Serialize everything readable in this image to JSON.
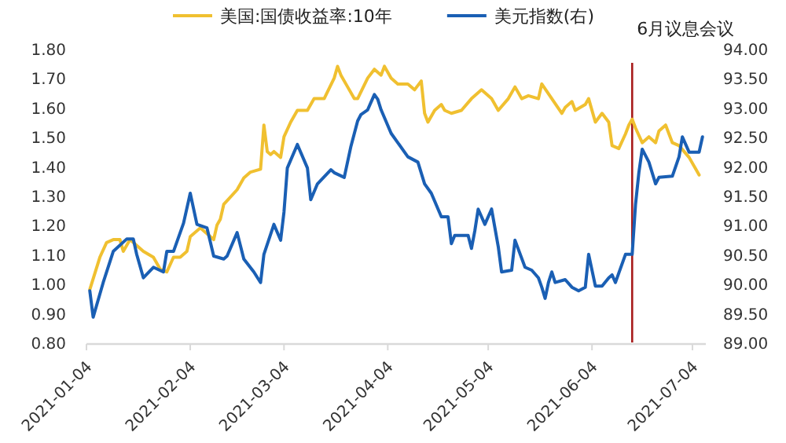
{
  "chart_data": {
    "type": "line",
    "legend": "top",
    "line_style": "solid",
    "marker": "none",
    "xlim": [
      "2021-01-04",
      "2021-07-08"
    ],
    "xticks": [
      "2021-01-04",
      "2021-02-04",
      "2021-03-04",
      "2021-04-04",
      "2021-05-04",
      "2021-06-04",
      "2021-07-04"
    ],
    "ylim": [
      0.8,
      1.8
    ],
    "yticks": [
      {
        "value": 0.8,
        "label": "0.80"
      },
      {
        "value": 0.9,
        "label": "0.90"
      },
      {
        "value": 1.0,
        "label": "1.00"
      },
      {
        "value": 1.1,
        "label": "1.10"
      },
      {
        "value": 1.2,
        "label": "1.20"
      },
      {
        "value": 1.3,
        "label": "1.30"
      },
      {
        "value": 1.4,
        "label": "1.40"
      },
      {
        "value": 1.5,
        "label": "1.50"
      },
      {
        "value": 1.6,
        "label": "1.60"
      },
      {
        "value": 1.7,
        "label": "1.70"
      },
      {
        "value": 1.8,
        "label": "1.80"
      }
    ],
    "y2lim": [
      89,
      94
    ],
    "y2ticks": [
      {
        "value": 89,
        "label": "89.00"
      },
      {
        "value": 89.5,
        "label": "89.50"
      },
      {
        "value": 90,
        "label": "90.00"
      },
      {
        "value": 90.5,
        "label": "90.50"
      },
      {
        "value": 91,
        "label": "91.00"
      },
      {
        "value": 91.5,
        "label": "91.50"
      },
      {
        "value": 92,
        "label": "92.00"
      },
      {
        "value": 92.5,
        "label": "92.50"
      },
      {
        "value": 93,
        "label": "93.00"
      },
      {
        "value": 93.5,
        "label": "93.50"
      },
      {
        "value": 94,
        "label": "94.00"
      }
    ],
    "ref_lines": [
      {
        "axis": "x",
        "value": "2021-06-16",
        "label": "6月议息会议",
        "color": "#a81c1c"
      }
    ],
    "series": [
      {
        "name": "美国:国债收益率:10年",
        "color": "#f0c030",
        "x": [
          "2021-01-05",
          "2021-01-08",
          "2021-01-10",
          "2021-01-12",
          "2021-01-14",
          "2021-01-15",
          "2021-01-17",
          "2021-01-21",
          "2021-01-24",
          "2021-01-26",
          "2021-01-28",
          "2021-01-30",
          "2021-02-01",
          "2021-02-03",
          "2021-02-04",
          "2021-02-07",
          "2021-02-09",
          "2021-02-11",
          "2021-02-12",
          "2021-02-13",
          "2021-02-14",
          "2021-02-18",
          "2021-02-20",
          "2021-02-22",
          "2021-02-25",
          "2021-02-26",
          "2021-02-27",
          "2021-02-28",
          "2021-03-01",
          "2021-03-03",
          "2021-03-04",
          "2021-03-06",
          "2021-03-08",
          "2021-03-11",
          "2021-03-13",
          "2021-03-14",
          "2021-03-16",
          "2021-03-19",
          "2021-03-20",
          "2021-03-21",
          "2021-03-23",
          "2021-03-25",
          "2021-03-26",
          "2021-03-29",
          "2021-03-31",
          "2021-04-02",
          "2021-04-03",
          "2021-04-05",
          "2021-04-07",
          "2021-04-10",
          "2021-04-12",
          "2021-04-14",
          "2021-04-15",
          "2021-04-16",
          "2021-04-18",
          "2021-04-20",
          "2021-04-21",
          "2021-04-23",
          "2021-04-26",
          "2021-04-29",
          "2021-05-02",
          "2021-05-05",
          "2021-05-07",
          "2021-05-10",
          "2021-05-12",
          "2021-05-14",
          "2021-05-16",
          "2021-05-19",
          "2021-05-20",
          "2021-05-23",
          "2021-05-26",
          "2021-05-27",
          "2021-05-29",
          "2021-05-30",
          "2021-06-02",
          "2021-06-03",
          "2021-06-05",
          "2021-06-07",
          "2021-06-09",
          "2021-06-10",
          "2021-06-12",
          "2021-06-14",
          "2021-06-15",
          "2021-06-16",
          "2021-06-17",
          "2021-06-19",
          "2021-06-21",
          "2021-06-23",
          "2021-06-24",
          "2021-06-26",
          "2021-06-28",
          "2021-06-30",
          "2021-07-03",
          "2021-07-05",
          "2021-07-06"
        ],
        "values": [
          0.98,
          1.09,
          1.14,
          1.15,
          1.15,
          1.11,
          1.15,
          1.11,
          1.09,
          1.05,
          1.04,
          1.09,
          1.09,
          1.11,
          1.16,
          1.19,
          1.17,
          1.15,
          1.2,
          1.22,
          1.27,
          1.32,
          1.36,
          1.38,
          1.39,
          1.54,
          1.45,
          1.44,
          1.45,
          1.43,
          1.5,
          1.55,
          1.59,
          1.59,
          1.63,
          1.63,
          1.63,
          1.7,
          1.74,
          1.71,
          1.67,
          1.63,
          1.63,
          1.7,
          1.73,
          1.71,
          1.74,
          1.7,
          1.68,
          1.68,
          1.66,
          1.69,
          1.58,
          1.55,
          1.59,
          1.61,
          1.59,
          1.58,
          1.59,
          1.63,
          1.66,
          1.63,
          1.59,
          1.63,
          1.67,
          1.63,
          1.64,
          1.63,
          1.68,
          1.63,
          1.58,
          1.6,
          1.62,
          1.59,
          1.61,
          1.63,
          1.55,
          1.58,
          1.55,
          1.47,
          1.46,
          1.51,
          1.54,
          1.56,
          1.53,
          1.48,
          1.5,
          1.48,
          1.52,
          1.54,
          1.48,
          1.47,
          1.43,
          1.39,
          1.37
        ]
      },
      {
        "name": "美元指数(右)",
        "color": "#1a5fb4",
        "axis": "y2",
        "x": [
          "2021-01-05",
          "2021-01-06",
          "2021-01-09",
          "2021-01-12",
          "2021-01-16",
          "2021-01-18",
          "2021-01-19",
          "2021-01-21",
          "2021-01-24",
          "2021-01-27",
          "2021-01-28",
          "2021-01-30",
          "2021-02-02",
          "2021-02-04",
          "2021-02-06",
          "2021-02-09",
          "2021-02-11",
          "2021-02-14",
          "2021-02-15",
          "2021-02-18",
          "2021-02-20",
          "2021-02-23",
          "2021-02-25",
          "2021-02-26",
          "2021-03-01",
          "2021-03-03",
          "2021-03-04",
          "2021-03-05",
          "2021-03-08",
          "2021-03-11",
          "2021-03-12",
          "2021-03-14",
          "2021-03-18",
          "2021-03-19",
          "2021-03-22",
          "2021-03-24",
          "2021-03-26",
          "2021-03-27",
          "2021-03-29",
          "2021-03-31",
          "2021-04-01",
          "2021-04-02",
          "2021-04-05",
          "2021-04-10",
          "2021-04-13",
          "2021-04-15",
          "2021-04-17",
          "2021-04-20",
          "2021-04-22",
          "2021-04-23",
          "2021-04-24",
          "2021-04-28",
          "2021-04-29",
          "2021-04-30",
          "2021-05-01",
          "2021-05-03",
          "2021-05-05",
          "2021-05-07",
          "2021-05-08",
          "2021-05-11",
          "2021-05-12",
          "2021-05-15",
          "2021-05-17",
          "2021-05-19",
          "2021-05-20",
          "2021-05-21",
          "2021-05-22",
          "2021-05-23",
          "2021-05-24",
          "2021-05-27",
          "2021-05-29",
          "2021-05-31",
          "2021-06-02",
          "2021-06-03",
          "2021-06-05",
          "2021-06-07",
          "2021-06-09",
          "2021-06-10",
          "2021-06-11",
          "2021-06-14",
          "2021-06-16",
          "2021-06-17",
          "2021-06-18",
          "2021-06-19",
          "2021-06-21",
          "2021-06-23",
          "2021-06-24",
          "2021-06-28",
          "2021-06-30",
          "2021-07-01",
          "2021-07-03",
          "2021-07-06",
          "2021-07-07"
        ],
        "values": [
          89.88,
          89.43,
          90.02,
          90.55,
          90.76,
          90.76,
          90.5,
          90.1,
          90.28,
          90.2,
          90.55,
          90.55,
          91.03,
          91.54,
          91.01,
          90.95,
          90.47,
          90.42,
          90.47,
          90.87,
          90.42,
          90.2,
          90.02,
          90.5,
          91.01,
          90.74,
          91.22,
          91.97,
          92.37,
          91.97,
          91.43,
          91.7,
          91.94,
          91.89,
          91.81,
          92.34,
          92.77,
          92.88,
          92.96,
          93.22,
          93.14,
          92.96,
          92.56,
          92.16,
          92.07,
          91.7,
          91.54,
          91.14,
          91.14,
          90.68,
          90.82,
          90.82,
          90.6,
          90.9,
          91.27,
          91.01,
          91.27,
          90.63,
          90.2,
          90.23,
          90.74,
          90.28,
          90.23,
          90.1,
          89.94,
          89.75,
          90.02,
          90.2,
          90.02,
          90.07,
          89.94,
          89.88,
          89.94,
          90.5,
          89.96,
          89.96,
          90.1,
          90.15,
          90.02,
          90.5,
          90.5,
          91.35,
          91.89,
          92.29,
          92.07,
          91.7,
          91.81,
          91.83,
          92.16,
          92.5,
          92.24,
          92.24,
          92.5
        ]
      }
    ]
  }
}
